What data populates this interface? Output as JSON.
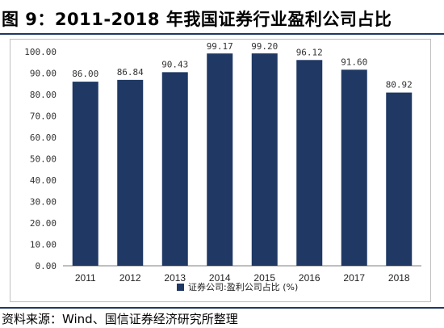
{
  "page": {
    "title": "图 9：2011-2018 年我国证券行业盈利公司占比",
    "source": "资料来源：Wind、国信证券经济研究所整理"
  },
  "colors": {
    "bar": "#1f3864",
    "rule": "#1f3864"
  },
  "chart_data": {
    "type": "bar",
    "title": "",
    "xlabel": "",
    "ylabel": "",
    "categories": [
      "2011",
      "2012",
      "2013",
      "2014",
      "2015",
      "2016",
      "2017",
      "2018"
    ],
    "series": [
      {
        "name": "证券公司:盈利公司占比 (%)",
        "values": [
          86.0,
          86.84,
          90.43,
          99.17,
          99.2,
          96.12,
          91.6,
          80.92
        ]
      }
    ],
    "data_labels": [
      "86.00",
      "86.84",
      "90.43",
      "99.17",
      "99.20",
      "96.12",
      "91.60",
      "80.92"
    ],
    "ylim": [
      0,
      100
    ],
    "yticks": [
      "0.00",
      "10.00",
      "20.00",
      "30.00",
      "40.00",
      "50.00",
      "60.00",
      "70.00",
      "80.00",
      "90.00",
      "100.00"
    ],
    "grid": false,
    "legend_position": "bottom"
  }
}
